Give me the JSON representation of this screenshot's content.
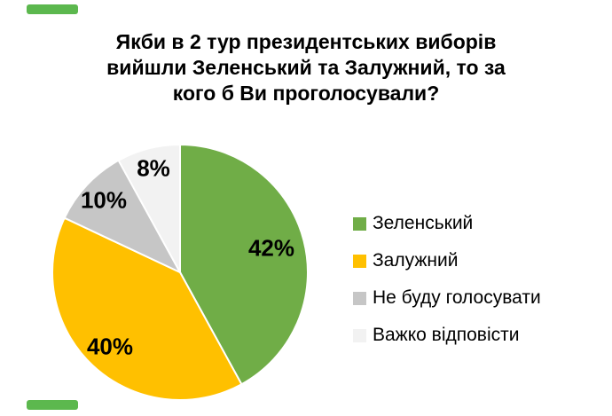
{
  "page": {
    "background": "#ffffff"
  },
  "title": {
    "text": "Якби в 2 тур президентських виборів вийшли Зеленський та Залужний, то за кого б Ви проголосували?",
    "lines": [
      "Якби в 2 тур президентських виборів",
      "вийшли Зеленський та Залужний, то за",
      "кого б Ви проголосували?"
    ]
  },
  "decorations": {
    "corner_bar_color": "#5CB84E"
  },
  "chart_data": {
    "type": "pie",
    "title": "Якби в 2 тур президентських виборів вийшли Зеленський та Залужний, то за кого б Ви проголосували?",
    "slices": [
      {
        "label": "Зеленський",
        "value": 42,
        "display": "42%",
        "color": "#70AD47"
      },
      {
        "label": "Залужний",
        "value": 40,
        "display": "40%",
        "color": "#FFC000"
      },
      {
        "label": "Не буду голосувати",
        "value": 10,
        "display": "10%",
        "color": "#C6C6C6"
      },
      {
        "label": "Важко відповісти",
        "value": 8,
        "display": "8%",
        "color": "#F2F2F2"
      }
    ],
    "start_angle_deg": 0,
    "direction": "clockwise",
    "total": 100,
    "legend_position": "right",
    "labels_inside": true,
    "label_color": "#000000",
    "label_radius_frac": [
      0.74,
      0.8,
      0.82,
      0.84
    ],
    "slice_separator_color": "#ffffff"
  }
}
